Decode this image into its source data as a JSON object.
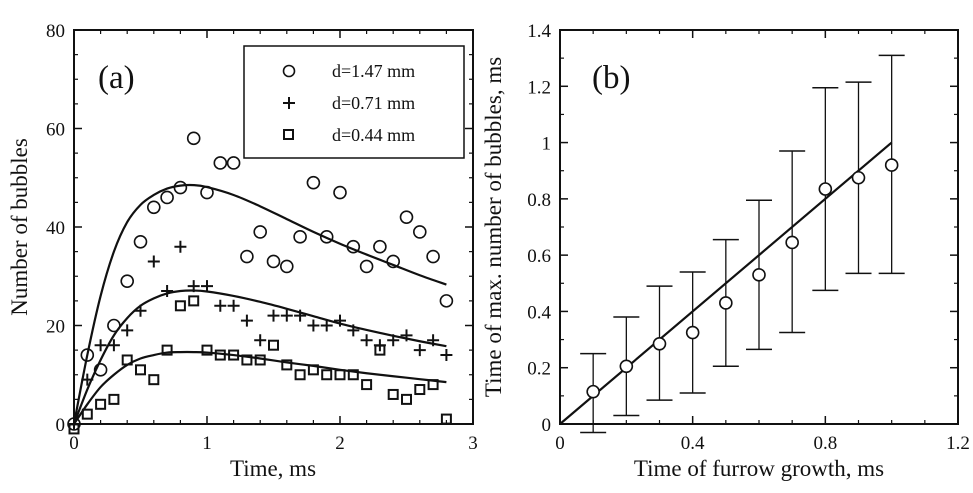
{
  "chart_data": [
    {
      "type": "scatter",
      "panel_label": "(a)",
      "xlabel": "Time, ms",
      "ylabel": "Number of bubbles",
      "xlim": [
        0,
        3
      ],
      "ylim": [
        0,
        80
      ],
      "xticks": [
        "0",
        "1",
        "2",
        "3"
      ],
      "yticks": [
        "0",
        "20",
        "40",
        "60",
        "80"
      ],
      "legend_position": "top-right",
      "series": [
        {
          "name": "d=1.47 mm",
          "marker": "circle",
          "points": [
            [
              0.0,
              0
            ],
            [
              0.1,
              14
            ],
            [
              0.2,
              11
            ],
            [
              0.3,
              20
            ],
            [
              0.4,
              29
            ],
            [
              0.5,
              37
            ],
            [
              0.6,
              44
            ],
            [
              0.7,
              46
            ],
            [
              0.8,
              48
            ],
            [
              0.9,
              58
            ],
            [
              1.0,
              47
            ],
            [
              1.1,
              53
            ],
            [
              1.2,
              53
            ],
            [
              1.3,
              34
            ],
            [
              1.4,
              39
            ],
            [
              1.5,
              33
            ],
            [
              1.6,
              32
            ],
            [
              1.7,
              38
            ],
            [
              1.8,
              49
            ],
            [
              1.9,
              38
            ],
            [
              2.0,
              47
            ],
            [
              2.1,
              36
            ],
            [
              2.2,
              32
            ],
            [
              2.3,
              36
            ],
            [
              2.4,
              33
            ],
            [
              2.5,
              42
            ],
            [
              2.6,
              39
            ],
            [
              2.7,
              34
            ],
            [
              2.8,
              25
            ]
          ],
          "fit": [
            [
              0.0,
              0
            ],
            [
              0.1,
              14
            ],
            [
              0.2,
              26
            ],
            [
              0.3,
              35
            ],
            [
              0.4,
              41
            ],
            [
              0.5,
              44.5
            ],
            [
              0.6,
              46.5
            ],
            [
              0.7,
              47.8
            ],
            [
              0.8,
              48.4
            ],
            [
              0.9,
              48.5
            ],
            [
              1.0,
              48.1
            ],
            [
              1.2,
              46.5
            ],
            [
              1.4,
              44.2
            ],
            [
              1.6,
              41.6
            ],
            [
              1.8,
              39
            ],
            [
              2.0,
              36.6
            ],
            [
              2.2,
              34.4
            ],
            [
              2.4,
              32.3
            ],
            [
              2.6,
              30.2
            ],
            [
              2.8,
              28.3
            ]
          ]
        },
        {
          "name": "d=0.71 mm",
          "marker": "plus",
          "points": [
            [
              0.0,
              0
            ],
            [
              0.1,
              9
            ],
            [
              0.2,
              16
            ],
            [
              0.3,
              16
            ],
            [
              0.4,
              19
            ],
            [
              0.5,
              23
            ],
            [
              0.6,
              33
            ],
            [
              0.7,
              27
            ],
            [
              0.8,
              36
            ],
            [
              0.9,
              28
            ],
            [
              1.0,
              28
            ],
            [
              1.1,
              24
            ],
            [
              1.2,
              24
            ],
            [
              1.3,
              21
            ],
            [
              1.4,
              17
            ],
            [
              1.5,
              22
            ],
            [
              1.6,
              22
            ],
            [
              1.7,
              22
            ],
            [
              1.8,
              20
            ],
            [
              1.9,
              20
            ],
            [
              2.0,
              21
            ],
            [
              2.1,
              19
            ],
            [
              2.2,
              17
            ],
            [
              2.3,
              16
            ],
            [
              2.4,
              17
            ],
            [
              2.5,
              18
            ],
            [
              2.6,
              15
            ],
            [
              2.7,
              17
            ],
            [
              2.8,
              14
            ]
          ],
          "fit": [
            [
              0.0,
              0
            ],
            [
              0.1,
              7
            ],
            [
              0.2,
              13
            ],
            [
              0.3,
              18
            ],
            [
              0.4,
              21.5
            ],
            [
              0.5,
              24
            ],
            [
              0.6,
              25.5
            ],
            [
              0.7,
              26.5
            ],
            [
              0.8,
              27
            ],
            [
              0.9,
              27.1
            ],
            [
              1.0,
              26.9
            ],
            [
              1.2,
              26
            ],
            [
              1.4,
              24.8
            ],
            [
              1.6,
              23.4
            ],
            [
              1.8,
              21.9
            ],
            [
              2.0,
              20.4
            ],
            [
              2.2,
              19.1
            ],
            [
              2.4,
              17.9
            ],
            [
              2.6,
              16.8
            ],
            [
              2.8,
              15.8
            ]
          ]
        },
        {
          "name": "d=0.44 mm",
          "marker": "square",
          "points": [
            [
              0.0,
              -1
            ],
            [
              0.1,
              2
            ],
            [
              0.2,
              4
            ],
            [
              0.3,
              5
            ],
            [
              0.4,
              13
            ],
            [
              0.5,
              11
            ],
            [
              0.6,
              9
            ],
            [
              0.7,
              15
            ],
            [
              0.8,
              24
            ],
            [
              0.9,
              25
            ],
            [
              1.0,
              15
            ],
            [
              1.1,
              14
            ],
            [
              1.2,
              14
            ],
            [
              1.3,
              13
            ],
            [
              1.4,
              13
            ],
            [
              1.5,
              16
            ],
            [
              1.6,
              12
            ],
            [
              1.7,
              10
            ],
            [
              1.8,
              11
            ],
            [
              1.9,
              10
            ],
            [
              2.0,
              10
            ],
            [
              2.1,
              10
            ],
            [
              2.2,
              8
            ],
            [
              2.3,
              15
            ],
            [
              2.4,
              6
            ],
            [
              2.5,
              5
            ],
            [
              2.6,
              7
            ],
            [
              2.7,
              8
            ],
            [
              2.8,
              1
            ]
          ],
          "fit": [
            [
              0.0,
              0
            ],
            [
              0.1,
              4
            ],
            [
              0.2,
              7.5
            ],
            [
              0.3,
              10
            ],
            [
              0.4,
              12
            ],
            [
              0.5,
              13.3
            ],
            [
              0.6,
              14
            ],
            [
              0.7,
              14.5
            ],
            [
              0.8,
              14.6
            ],
            [
              0.9,
              14.6
            ],
            [
              1.0,
              14.5
            ],
            [
              1.2,
              14
            ],
            [
              1.4,
              13.3
            ],
            [
              1.6,
              12.5
            ],
            [
              1.8,
              11.8
            ],
            [
              2.0,
              11
            ],
            [
              2.2,
              10.3
            ],
            [
              2.4,
              9.7
            ],
            [
              2.6,
              9.1
            ],
            [
              2.8,
              8.5
            ]
          ]
        }
      ]
    },
    {
      "type": "scatter",
      "panel_label": "(b)",
      "xlabel": "Time of furrow growth, ms",
      "ylabel": "Time of max. number of bubbles, ms",
      "xlim": [
        0,
        1.2
      ],
      "ylim": [
        0,
        1.4
      ],
      "xticks": [
        "0",
        "0.4",
        "0.8",
        "1.2"
      ],
      "yticks": [
        "0",
        "0.2",
        "0.4",
        "0.6",
        "0.8",
        "1",
        "1.2",
        "1.4"
      ],
      "points": [
        {
          "x": 0.1,
          "y": 0.115,
          "lo": -0.03,
          "hi": 0.25
        },
        {
          "x": 0.2,
          "y": 0.205,
          "lo": 0.03,
          "hi": 0.38
        },
        {
          "x": 0.3,
          "y": 0.285,
          "lo": 0.085,
          "hi": 0.49
        },
        {
          "x": 0.4,
          "y": 0.325,
          "lo": 0.11,
          "hi": 0.54
        },
        {
          "x": 0.5,
          "y": 0.43,
          "lo": 0.205,
          "hi": 0.655
        },
        {
          "x": 0.6,
          "y": 0.53,
          "lo": 0.265,
          "hi": 0.795
        },
        {
          "x": 0.7,
          "y": 0.645,
          "lo": 0.325,
          "hi": 0.97
        },
        {
          "x": 0.8,
          "y": 0.835,
          "lo": 0.475,
          "hi": 1.195
        },
        {
          "x": 0.9,
          "y": 0.875,
          "lo": 0.535,
          "hi": 1.215
        },
        {
          "x": 1.0,
          "y": 0.92,
          "lo": 0.535,
          "hi": 1.31
        }
      ],
      "fit_line": [
        [
          0,
          0
        ],
        [
          1.0,
          1.0
        ]
      ]
    }
  ]
}
